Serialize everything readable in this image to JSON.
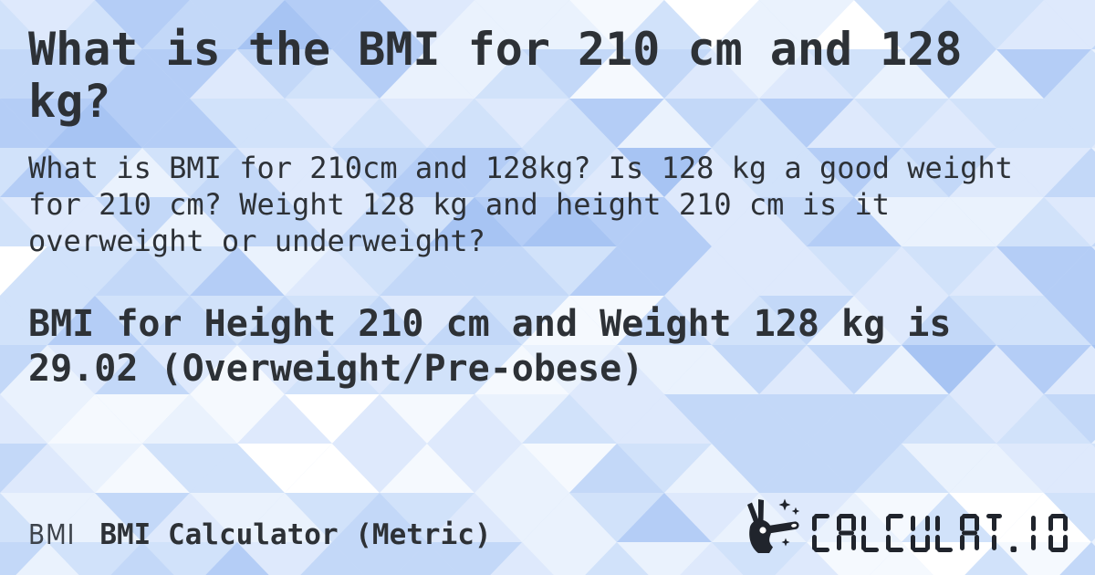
{
  "page": {
    "title": "What is the BMI for 210 cm and 128 kg?",
    "description": "What is BMI for 210cm and 128kg? Is 128 kg a good weight for 210 cm? Weight 128 kg and height 210 cm is it overweight or underweight?",
    "result": "BMI for Height 210 cm and Weight 128 kg is 29.02 (Overweight/Pre-obese)"
  },
  "footer": {
    "badge": "BMI",
    "app_name": "BMI Calculator (Metric)",
    "brand": "CALCULAT.IO"
  },
  "colors": {
    "text": "#2d3136",
    "logo": "#20242c",
    "background_base": "#cfe0fa",
    "background_palette": [
      "#ffffff",
      "#f5f9fe",
      "#eaf2fd",
      "#dee9fc",
      "#d1e2fa",
      "#c3d8f8",
      "#b4cdf6",
      "#a7c4f3"
    ]
  }
}
